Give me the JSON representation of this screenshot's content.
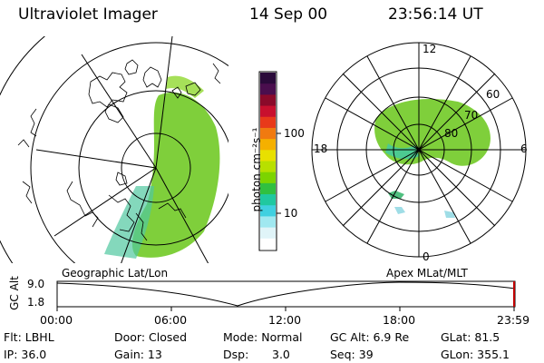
{
  "header": {
    "instrument": "Ultraviolet Imager",
    "date": "14 Sep 00",
    "time": "23:56:14 UT"
  },
  "colorbar": {
    "unit_label": "photon cm⁻²s⁻¹",
    "ticks": [
      "100",
      "10"
    ],
    "colors": [
      "#2a0a3a",
      "#4a0e4e",
      "#8b0a2a",
      "#c8102e",
      "#e83a1a",
      "#f07a10",
      "#f5b000",
      "#e8e000",
      "#b8e000",
      "#7cd400",
      "#30c040",
      "#20c8a0",
      "#40d0e0",
      "#a0e8f0",
      "#e0f4f8",
      "#ffffff"
    ]
  },
  "left_panel": {
    "caption": "Geographic Lat/Lon"
  },
  "right_panel": {
    "caption": "Apex  MLat/MLT",
    "mlt_labels": {
      "top": "12",
      "left": "18",
      "right": "6",
      "bottom": "0"
    },
    "lat_labels": [
      "60",
      "70",
      "80"
    ]
  },
  "timeline": {
    "ylabel": "GC Alt",
    "yticks": [
      "9.0",
      "1.8"
    ],
    "xticks": [
      "00:00",
      "06:00",
      "12:00",
      "18:00",
      "23:59"
    ]
  },
  "status": {
    "flt": "Flt: LBHL",
    "ip": "IP: 36.0",
    "door": "Door: Closed",
    "gain": "Gain: 13",
    "mode": "Mode: Normal",
    "dsp_label": "Dsp:",
    "dsp_value": "3.0",
    "gcalt": "GC Alt: 6.9 Re",
    "seq": "Seq: 39",
    "glat": "GLat:  81.5",
    "glon": "GLon: 355.1"
  }
}
